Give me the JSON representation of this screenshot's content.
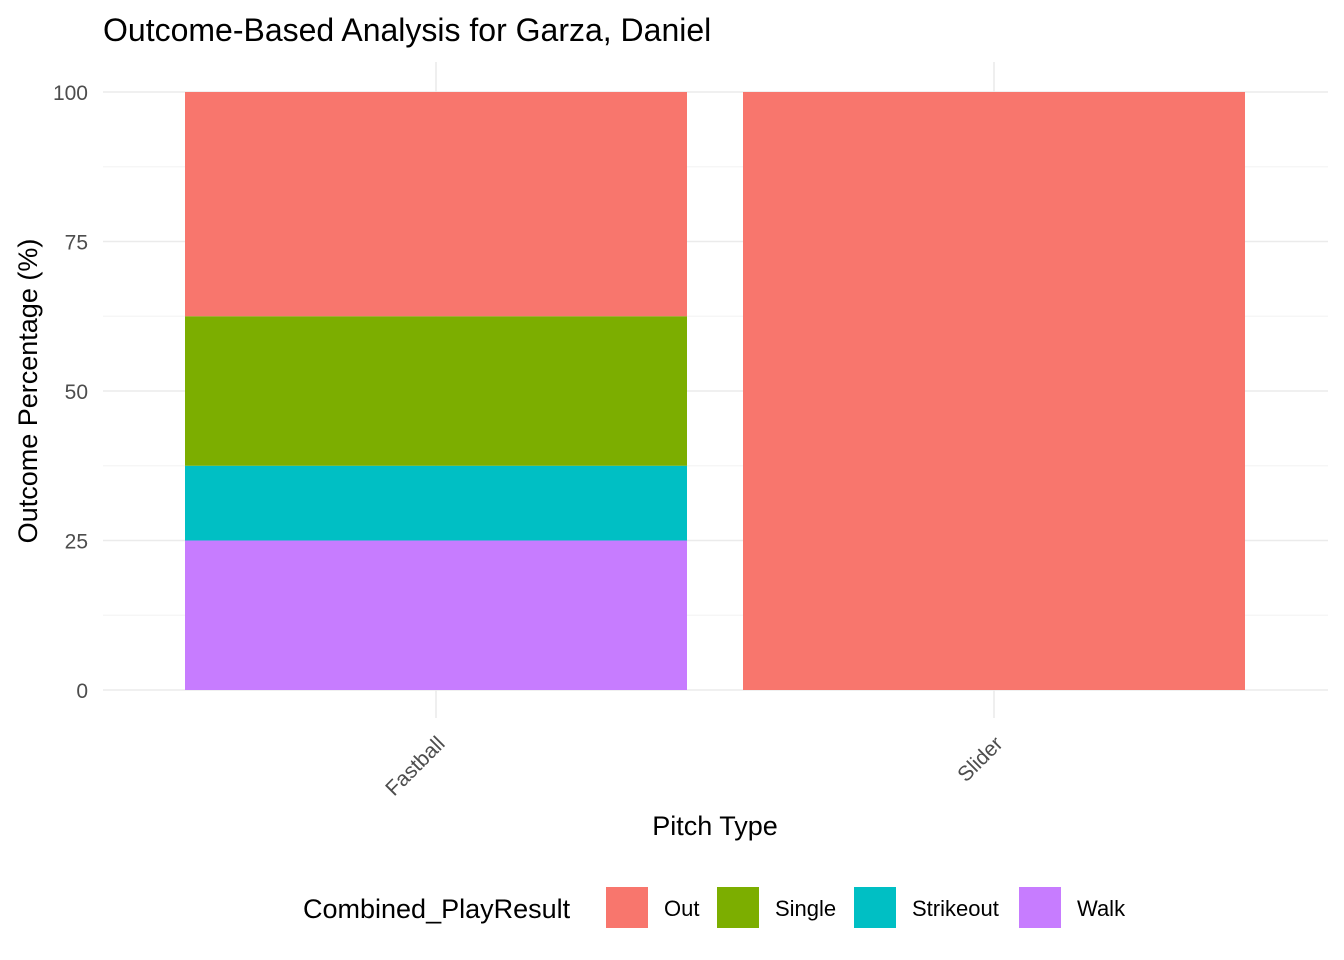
{
  "chart_data": {
    "type": "bar",
    "stacked": true,
    "title": "Outcome-Based Analysis for Garza, Daniel",
    "xlabel": "Pitch Type",
    "ylabel": "Outcome Percentage (%)",
    "ylim": [
      0,
      100
    ],
    "yticks": [
      0,
      25,
      50,
      75,
      100
    ],
    "categories": [
      "Fastball",
      "Slider"
    ],
    "series": [
      {
        "name": "Walk",
        "color": "#C77CFF",
        "values": [
          25,
          0
        ]
      },
      {
        "name": "Strikeout",
        "color": "#00BFC4",
        "values": [
          12.5,
          0
        ]
      },
      {
        "name": "Single",
        "color": "#7CAE00",
        "values": [
          25,
          0
        ]
      },
      {
        "name": "Out",
        "color": "#F8766D",
        "values": [
          37.5,
          100
        ]
      }
    ],
    "legend": {
      "title": "Combined_PlayResult",
      "position": "bottom",
      "entries": [
        "Out",
        "Single",
        "Strikeout",
        "Walk"
      ]
    },
    "grid": true
  }
}
